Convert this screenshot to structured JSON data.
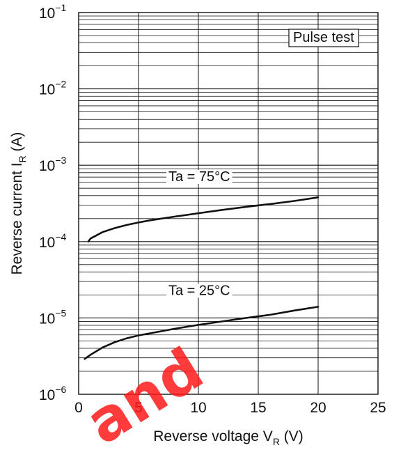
{
  "chart_data": {
    "type": "line",
    "title": "",
    "xlabel": {
      "main": "Reverse voltage  V",
      "sub": "R",
      "unit": "(V)"
    },
    "ylabel": {
      "main": "Reverse current  I",
      "sub": "R",
      "unit": "(A)"
    },
    "xlim": [
      0,
      25
    ],
    "ylim": [
      1e-06,
      0.1
    ],
    "yscale": "log",
    "grid": true,
    "x_ticks": [
      {
        "value": 0,
        "label": "0"
      },
      {
        "value": 5,
        "label": "5"
      },
      {
        "value": 10,
        "label": "10"
      },
      {
        "value": 15,
        "label": "15"
      },
      {
        "value": 20,
        "label": "20"
      },
      {
        "value": 25,
        "label": "25"
      }
    ],
    "y_ticks": [
      {
        "value": 1e-06,
        "base": "10",
        "exp": "−6"
      },
      {
        "value": 1e-05,
        "base": "10",
        "exp": "−5"
      },
      {
        "value": 0.0001,
        "base": "10",
        "exp": "−4"
      },
      {
        "value": 0.001,
        "base": "10",
        "exp": "−3"
      },
      {
        "value": 0.01,
        "base": "10",
        "exp": "−2"
      },
      {
        "value": 0.1,
        "base": "10",
        "exp": "−1"
      }
    ],
    "annotations": {
      "pulse_test": "Pulse test"
    },
    "series": [
      {
        "name": "Ta = 75°C",
        "x": [
          0.8,
          1,
          2,
          3,
          4,
          5,
          6,
          8,
          10,
          12,
          14,
          16,
          18,
          20
        ],
        "y": [
          0.0001,
          0.00011,
          0.000133,
          0.00015,
          0.000165,
          0.000178,
          0.00019,
          0.000212,
          0.000235,
          0.00026,
          0.000285,
          0.00031,
          0.00034,
          0.00038
        ]
      },
      {
        "name": "Ta = 25°C",
        "x": [
          0.5,
          1,
          2,
          3,
          4,
          5,
          6,
          8,
          10,
          12,
          14,
          16,
          18,
          20
        ],
        "y": [
          2.9e-06,
          3.3e-06,
          4.1e-06,
          4.8e-06,
          5.4e-06,
          5.9e-06,
          6.3e-06,
          7.2e-06,
          8.1e-06,
          9e-06,
          1e-05,
          1.1e-05,
          1.25e-05,
          1.4e-05
        ]
      }
    ]
  },
  "watermark": {
    "text": "and",
    "color": "#ff1a1a"
  }
}
